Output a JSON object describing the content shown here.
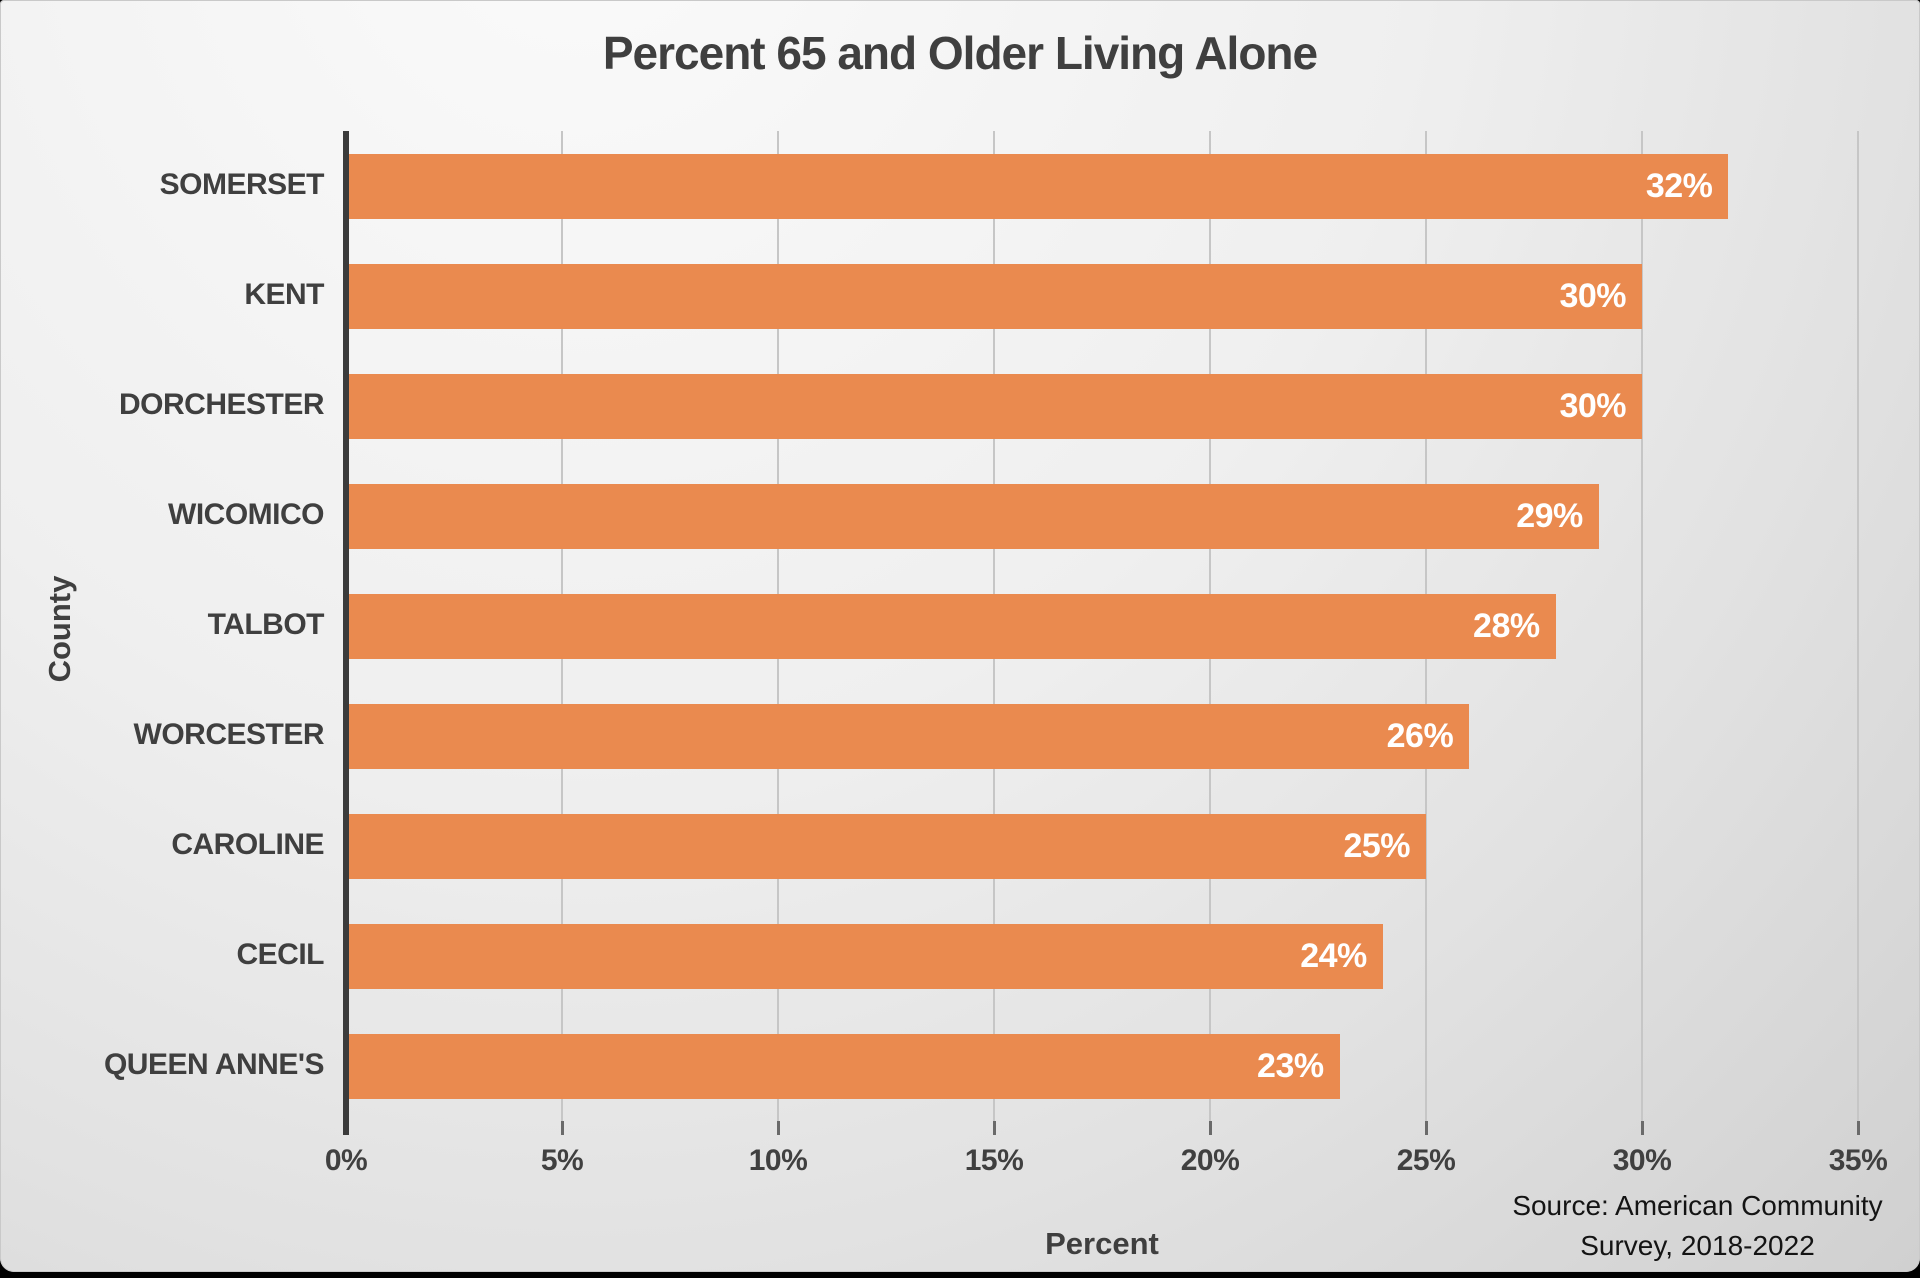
{
  "title": "Percent 65 and Older Living Alone",
  "chart_data": {
    "type": "bar",
    "orientation": "horizontal",
    "title": "Percent 65 and Older Living Alone",
    "categories": [
      "SOMERSET",
      "KENT",
      "DORCHESTER",
      "WICOMICO",
      "TALBOT",
      "WORCESTER",
      "CAROLINE",
      "CECIL",
      "QUEEN ANNE'S"
    ],
    "values": [
      32,
      30,
      30,
      29,
      28,
      26,
      25,
      24,
      23
    ],
    "value_labels": [
      "32%",
      "30%",
      "30%",
      "29%",
      "28%",
      "26%",
      "25%",
      "24%",
      "23%"
    ],
    "xlabel": "Percent",
    "ylabel": "County",
    "xlim": [
      0,
      35
    ],
    "x_tick_values": [
      0,
      5,
      10,
      15,
      20,
      25,
      30,
      35
    ],
    "x_tick_labels": [
      "0%",
      "5%",
      "10%",
      "15%",
      "20%",
      "25%",
      "30%",
      "35%"
    ],
    "grid": true,
    "legend": false,
    "bar_color": "#EA8A4F",
    "value_label_color": "#FFFFFF"
  },
  "source": {
    "line1": "Source: American Community",
    "line2": "Survey, 2018-2022"
  }
}
